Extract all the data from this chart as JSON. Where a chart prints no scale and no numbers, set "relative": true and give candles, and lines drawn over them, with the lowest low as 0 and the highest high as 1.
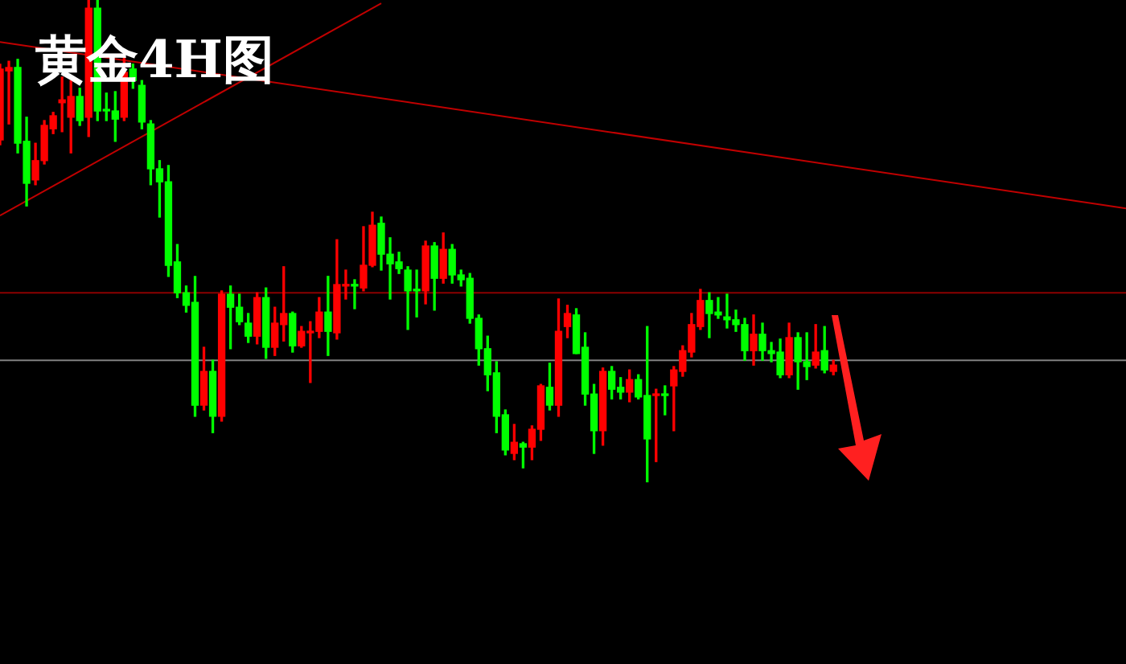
{
  "chart_data": {
    "type": "candlestick",
    "title": "黄金4H图",
    "relative": true,
    "tick_labels": false,
    "categories": [
      null,
      null,
      null,
      null,
      null,
      null,
      null,
      null,
      null,
      null,
      null,
      null,
      null,
      null,
      null,
      null,
      null,
      null,
      null,
      null,
      null,
      null,
      null,
      null,
      null,
      null,
      null,
      null,
      null,
      null,
      null,
      null,
      null,
      null,
      null,
      null,
      null,
      null,
      null,
      null,
      null,
      null,
      null,
      null,
      null,
      null,
      null,
      null,
      null,
      null,
      null,
      null,
      null,
      null,
      null,
      null,
      null,
      null,
      null,
      null,
      null,
      null,
      null,
      null,
      null,
      null,
      null,
      null,
      null,
      null,
      null,
      null,
      null,
      null,
      null,
      null,
      null,
      null,
      null,
      null,
      null,
      null,
      null,
      null,
      null,
      null,
      null,
      null,
      null,
      null,
      null,
      null,
      null,
      null,
      null,
      null,
      null,
      null,
      null,
      null,
      null,
      null,
      null,
      null,
      null,
      null,
      null,
      null,
      null,
      null,
      null,
      null,
      null,
      null,
      null,
      null,
      null,
      null,
      null,
      null,
      null,
      null,
      null,
      null,
      null,
      null,
      null,
      null
    ],
    "ohlc": [
      [
        0.71,
        0.867,
        0.7,
        0.857
      ],
      [
        0.853,
        0.873,
        0.743,
        0.86
      ],
      [
        0.86,
        0.877,
        0.683,
        0.703
      ],
      [
        0.707,
        0.757,
        0.573,
        0.62
      ],
      [
        0.627,
        0.703,
        0.617,
        0.667
      ],
      [
        0.667,
        0.75,
        0.66,
        0.74
      ],
      [
        0.733,
        0.767,
        0.723,
        0.76
      ],
      [
        0.787,
        0.84,
        0.727,
        0.793
      ],
      [
        0.757,
        0.833,
        0.683,
        0.8
      ],
      [
        0.8,
        0.817,
        0.74,
        0.75
      ],
      [
        0.757,
        1,
        0.717,
        0.983
      ],
      [
        0.983,
        1,
        0.75,
        0.77
      ],
      [
        0.773,
        0.807,
        0.75,
        0.77
      ],
      [
        0.77,
        0.81,
        0.707,
        0.753
      ],
      [
        0.757,
        0.883,
        0.75,
        0.85
      ],
      [
        0.857,
        0.867,
        0.817,
        0.833
      ],
      [
        0.823,
        0.833,
        0.733,
        0.747
      ],
      [
        0.743,
        0.75,
        0.617,
        0.65
      ],
      [
        0.65,
        0.667,
        0.55,
        0.623
      ],
      [
        0.623,
        0.657,
        0.427,
        0.45
      ],
      [
        0.457,
        0.493,
        0.383,
        0.393
      ],
      [
        0.393,
        0.407,
        0.353,
        0.367
      ],
      [
        0.373,
        0.427,
        0.137,
        0.16
      ],
      [
        0.16,
        0.28,
        0.15,
        0.23
      ],
      [
        0.23,
        0.253,
        0.103,
        0.137
      ],
      [
        0.137,
        0.397,
        0.127,
        0.39
      ],
      [
        0.39,
        0.407,
        0.277,
        0.363
      ],
      [
        0.363,
        0.39,
        0.327,
        0.333
      ],
      [
        0.33,
        0.35,
        0.29,
        0.303
      ],
      [
        0.303,
        0.393,
        0.287,
        0.383
      ],
      [
        0.383,
        0.403,
        0.257,
        0.28
      ],
      [
        0.28,
        0.363,
        0.263,
        0.33
      ],
      [
        0.327,
        0.447,
        0.293,
        0.35
      ],
      [
        0.35,
        0.353,
        0.27,
        0.283
      ],
      [
        0.283,
        0.323,
        0.28,
        0.313
      ],
      [
        0.31,
        0.333,
        0.207,
        0.313
      ],
      [
        0.313,
        0.383,
        0.3,
        0.353
      ],
      [
        0.353,
        0.427,
        0.263,
        0.313
      ],
      [
        0.31,
        0.503,
        0.297,
        0.41
      ],
      [
        0.407,
        0.44,
        0.38,
        0.41
      ],
      [
        0.41,
        0.42,
        0.36,
        0.407
      ],
      [
        0.403,
        0.53,
        0.397,
        0.45
      ],
      [
        0.45,
        0.56,
        0.447,
        0.533
      ],
      [
        0.537,
        0.55,
        0.44,
        0.473
      ],
      [
        0.473,
        0.507,
        0.38,
        0.453
      ],
      [
        0.457,
        0.477,
        0.433,
        0.443
      ],
      [
        0.44,
        0.447,
        0.317,
        0.397
      ],
      [
        0.4,
        0.44,
        0.343,
        0.397
      ],
      [
        0.397,
        0.5,
        0.37,
        0.49
      ],
      [
        0.49,
        0.497,
        0.357,
        0.423
      ],
      [
        0.423,
        0.517,
        0.413,
        0.483
      ],
      [
        0.483,
        0.493,
        0.413,
        0.43
      ],
      [
        0.43,
        0.44,
        0.407,
        0.42
      ],
      [
        0.423,
        0.433,
        0.33,
        0.34
      ],
      [
        0.34,
        0.347,
        0.243,
        0.277
      ],
      [
        0.277,
        0.303,
        0.19,
        0.223
      ],
      [
        0.227,
        0.25,
        0.103,
        0.137
      ],
      [
        0.14,
        0.15,
        0.057,
        0.067
      ],
      [
        0.06,
        0.12,
        0.047,
        0.083
      ],
      [
        0.08,
        0.083,
        0.03,
        0.073
      ],
      [
        0.073,
        0.117,
        0.047,
        0.11
      ],
      [
        0.11,
        0.203,
        0.087,
        0.2
      ],
      [
        0.197,
        0.247,
        0.15,
        0.16
      ],
      [
        0.16,
        0.38,
        0.137,
        0.313
      ],
      [
        0.323,
        0.367,
        0.3,
        0.35
      ],
      [
        0.347,
        0.36,
        0.267,
        0.267
      ],
      [
        0.28,
        0.31,
        0.16,
        0.183
      ],
      [
        0.183,
        0.203,
        0.06,
        0.107
      ],
      [
        0.107,
        0.237,
        0.077,
        0.23
      ],
      [
        0.23,
        0.24,
        0.173,
        0.193
      ],
      [
        0.197,
        0.217,
        0.173,
        0.187
      ],
      [
        0.187,
        0.233,
        0.167,
        0.213
      ],
      [
        0.213,
        0.223,
        0.173,
        0.177
      ],
      [
        0.18,
        0.323,
        0,
        0.09
      ],
      [
        0.18,
        0.193,
        0.043,
        0.183
      ],
      [
        0.183,
        0.2,
        0.14,
        0.18
      ],
      [
        0.2,
        0.24,
        0.107,
        0.233
      ],
      [
        0.23,
        0.283,
        0.22,
        0.273
      ],
      [
        0.27,
        0.35,
        0.26,
        0.327
      ],
      [
        0.323,
        0.4,
        0.317,
        0.377
      ],
      [
        0.377,
        0.393,
        0.3,
        0.35
      ],
      [
        0.353,
        0.383,
        0.34,
        0.347
      ],
      [
        0.343,
        0.39,
        0.32,
        0.337
      ],
      [
        0.337,
        0.357,
        0.313,
        0.327
      ],
      [
        0.327,
        0.34,
        0.253,
        0.273
      ],
      [
        0.273,
        0.347,
        0.243,
        0.307
      ],
      [
        0.307,
        0.33,
        0.253,
        0.273
      ],
      [
        0.273,
        0.29,
        0.25,
        0.267
      ],
      [
        0.27,
        0.297,
        0.217,
        0.223
      ],
      [
        0.223,
        0.33,
        0.217,
        0.3
      ],
      [
        0.3,
        0.31,
        0.193,
        0.25
      ],
      [
        0.25,
        0.31,
        0.213,
        0.24
      ],
      [
        0.243,
        0.327,
        0.237,
        0.27
      ],
      [
        0.273,
        0.323,
        0.227,
        0.233
      ],
      [
        0.23,
        0.253,
        0.223,
        0.243
      ],
      null,
      null,
      null,
      null,
      null,
      null,
      null,
      null,
      null,
      null,
      null,
      null,
      null,
      null,
      null,
      null,
      null,
      null,
      null,
      null,
      null,
      null,
      null,
      null,
      null,
      null,
      null,
      null,
      null,
      null,
      null,
      null,
      null
    ],
    "colors": [
      "#ff0000",
      "#ff0000",
      "#00ff00",
      "#00ff00",
      "#ff0000",
      "#ff0000",
      "#ff0000",
      "#ff0000",
      "#ff0000",
      "#00ff00",
      "#ff0000",
      "#00ff00",
      "#00ff00",
      "#00ff00",
      "#ff0000",
      "#00ff00",
      "#00ff00",
      "#00ff00",
      "#00ff00",
      "#00ff00",
      "#00ff00",
      "#00ff00",
      "#00ff00",
      "#ff0000",
      "#00ff00",
      "#ff0000",
      "#00ff00",
      "#00ff00",
      "#00ff00",
      "#ff0000",
      "#00ff00",
      "#ff0000",
      "#ff0000",
      "#00ff00",
      "#ff0000",
      "#ff0000",
      "#ff0000",
      "#00ff00",
      "#ff0000",
      "#ff0000",
      "#00ff00",
      "#ff0000",
      "#ff0000",
      "#00ff00",
      "#00ff00",
      "#00ff00",
      "#00ff00",
      "#00ff00",
      "#ff0000",
      "#00ff00",
      "#ff0000",
      "#00ff00",
      "#00ff00",
      "#00ff00",
      "#00ff00",
      "#00ff00",
      "#00ff00",
      "#00ff00",
      "#ff0000",
      "#00ff00",
      "#ff0000",
      "#ff0000",
      "#00ff00",
      "#ff0000",
      "#ff0000",
      "#00ff00",
      "#00ff00",
      "#00ff00",
      "#ff0000",
      "#00ff00",
      "#00ff00",
      "#ff0000",
      "#00ff00",
      "#00ff00",
      "#ff0000",
      "#00ff00",
      "#ff0000",
      "#ff0000",
      "#ff0000",
      "#ff0000",
      "#00ff00",
      "#00ff00",
      "#00ff00",
      "#00ff00",
      "#00ff00",
      "#ff0000",
      "#00ff00",
      "#00ff00",
      "#00ff00",
      "#ff0000",
      "#00ff00",
      "#00ff00",
      "#ff0000",
      "#00ff00",
      "#ff0000",
      null,
      null,
      null,
      null,
      null,
      null,
      null,
      null,
      null,
      null,
      null,
      null,
      null,
      null,
      null,
      null,
      null,
      null,
      null,
      null,
      null,
      null,
      null,
      null,
      null,
      null,
      null,
      null,
      null,
      null,
      null,
      null,
      null
    ],
    "series": [
      {
        "type": "line",
        "color": "#c00000",
        "values": [
          0.553,
          null,
          null,
          null,
          null,
          null,
          null,
          null,
          null,
          null,
          null,
          null,
          null,
          null,
          null,
          null,
          null,
          null,
          null,
          null,
          null,
          null,
          null,
          null,
          null,
          null,
          null,
          null,
          null,
          null,
          null,
          null,
          null,
          null,
          null,
          null,
          null,
          null,
          null,
          null,
          null,
          null,
          null,
          0.993,
          null,
          null,
          null,
          null,
          null,
          null,
          null,
          null,
          null,
          null,
          null,
          null,
          null,
          null,
          null,
          null,
          null,
          null,
          null,
          null,
          null,
          null,
          null,
          null,
          null,
          null,
          null,
          null,
          null,
          null,
          null,
          null,
          null,
          null,
          null,
          null,
          null,
          null,
          null,
          null,
          null,
          null,
          null,
          null,
          null,
          null,
          null,
          null,
          null,
          null,
          null,
          null,
          null,
          null,
          null,
          null,
          null,
          null,
          null,
          null,
          null,
          null,
          null,
          null,
          null,
          null,
          null,
          null,
          null,
          null,
          null,
          null,
          null,
          null,
          null,
          null,
          null,
          null,
          null,
          null,
          null,
          null,
          null,
          null
        ]
      },
      {
        "type": "line",
        "color": "#c00000",
        "values": [
          0.913,
          null,
          null,
          null,
          null,
          null,
          null,
          null,
          null,
          null,
          null,
          null,
          null,
          null,
          null,
          null,
          null,
          null,
          null,
          null,
          null,
          null,
          null,
          null,
          null,
          null,
          null,
          null,
          null,
          null,
          null,
          null,
          null,
          null,
          null,
          null,
          null,
          null,
          null,
          null,
          null,
          null,
          null,
          null,
          null,
          null,
          null,
          null,
          null,
          null,
          null,
          null,
          null,
          null,
          null,
          null,
          null,
          null,
          null,
          null,
          null,
          null,
          null,
          null,
          null,
          null,
          null,
          null,
          null,
          null,
          null,
          null,
          null,
          null,
          null,
          null,
          null,
          null,
          null,
          null,
          null,
          null,
          null,
          null,
          null,
          null,
          null,
          null,
          null,
          null,
          null,
          null,
          null,
          null,
          null,
          null,
          null,
          null,
          null,
          null,
          null,
          null,
          null,
          null,
          null,
          null,
          null,
          null,
          null,
          null,
          null,
          null,
          null,
          null,
          null,
          null,
          null,
          null,
          null,
          null,
          null,
          null,
          null,
          null,
          null,
          null,
          null,
          0.568
        ]
      }
    ],
    "ref_lines": [
      {
        "axis": "y",
        "value": 0.393,
        "color": "#8b0000"
      },
      {
        "axis": "y",
        "value": 0.253,
        "color": "#808080"
      }
    ]
  }
}
